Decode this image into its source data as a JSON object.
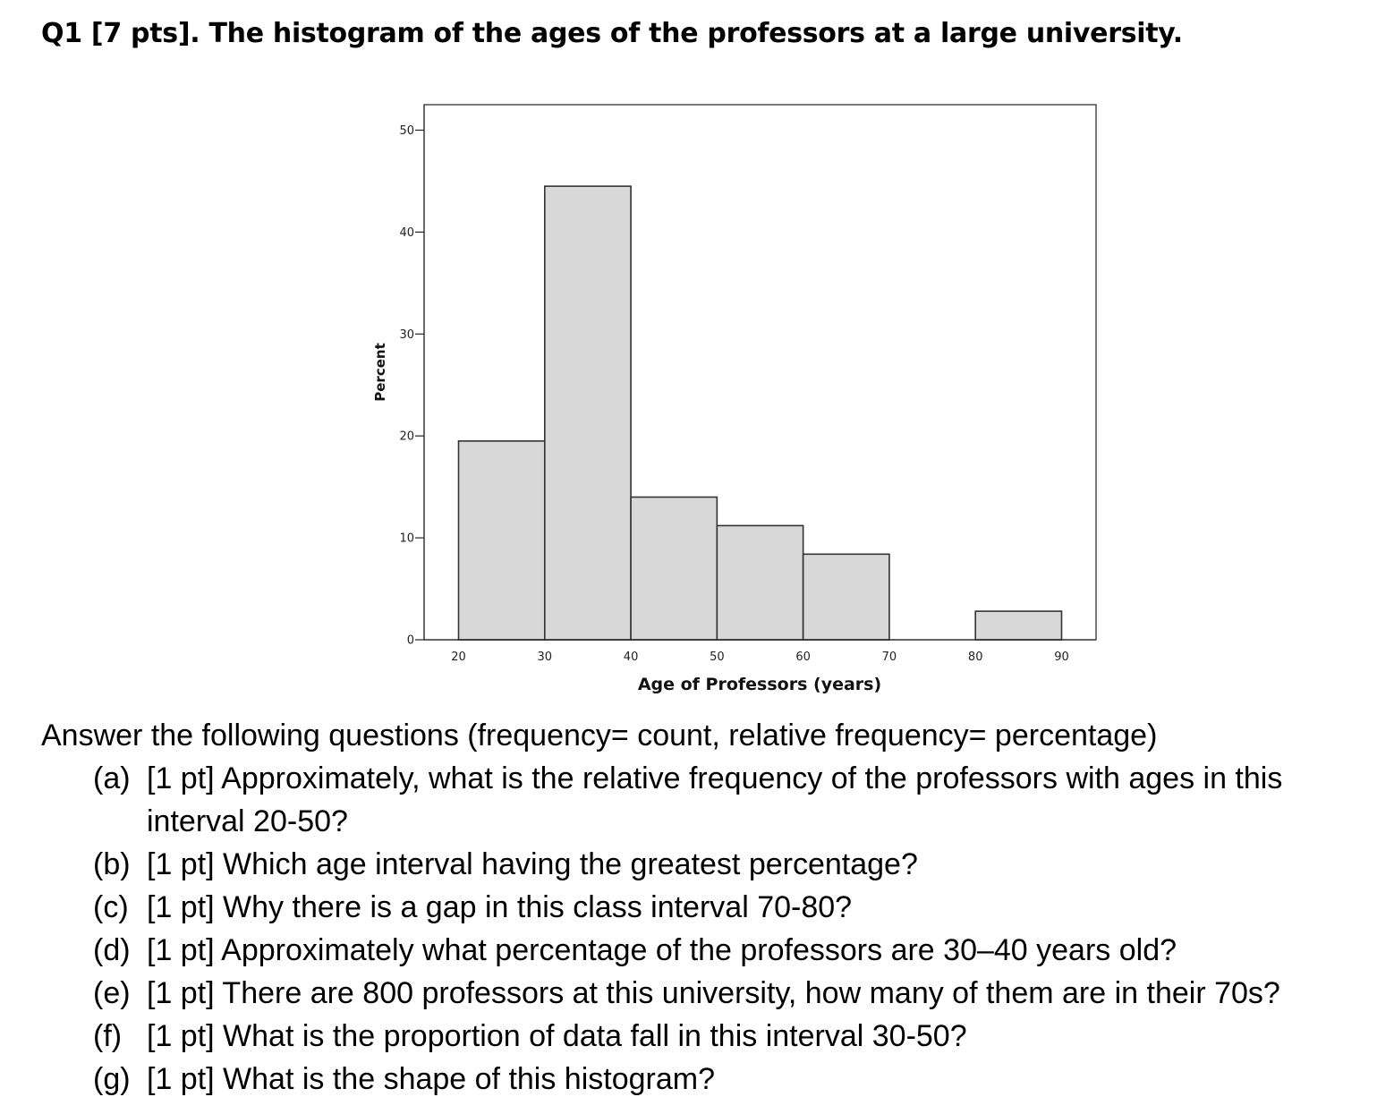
{
  "title": "Q1 [7 pts]. The histogram of the ages of the professors at a large university.",
  "chart_data": {
    "type": "bar",
    "variant": "histogram",
    "title": "",
    "xlabel": "Age of Professors (years)",
    "ylabel": "Percent",
    "xlim": [
      16,
      94
    ],
    "ylim": [
      0,
      52.5
    ],
    "x_ticks": [
      20,
      30,
      40,
      50,
      60,
      70,
      80,
      90
    ],
    "y_ticks": [
      0,
      10,
      20,
      30,
      40,
      50
    ],
    "bins": [
      {
        "from": 20,
        "to": 30,
        "value": 19.5
      },
      {
        "from": 30,
        "to": 40,
        "value": 44.5
      },
      {
        "from": 40,
        "to": 50,
        "value": 14
      },
      {
        "from": 50,
        "to": 60,
        "value": 11.2
      },
      {
        "from": 60,
        "to": 70,
        "value": 8.4
      },
      {
        "from": 70,
        "to": 80,
        "value": 0
      },
      {
        "from": 80,
        "to": 90,
        "value": 2.8
      }
    ],
    "grid": false,
    "legend": "none",
    "bar_color": "#d8d8d8",
    "edge_color": "#333333"
  },
  "intro": "Answer the following questions (frequency= count, relative frequency= percentage)",
  "questions": [
    {
      "letter": "(a)",
      "text": "[1 pt] Approximately, what is the relative frequency of the professors with ages in this interval 20-50?"
    },
    {
      "letter": "(b)",
      "text": "[1 pt] Which age interval having the greatest percentage?"
    },
    {
      "letter": "(c)",
      "text": "[1 pt] Why there is a gap in this class interval 70-80?"
    },
    {
      "letter": "(d)",
      "text": "[1 pt] Approximately what percentage of the professors are 30–40 years old?"
    },
    {
      "letter": "(e)",
      "text": "[1 pt] There are 800 professors at this university, how many of them are in their 70s?"
    },
    {
      "letter": "(f)",
      "text": "[1 pt] What is the proportion of data fall in this interval 30-50?"
    },
    {
      "letter": "(g)",
      "text": "[1 pt] What is the shape of this histogram?"
    }
  ]
}
